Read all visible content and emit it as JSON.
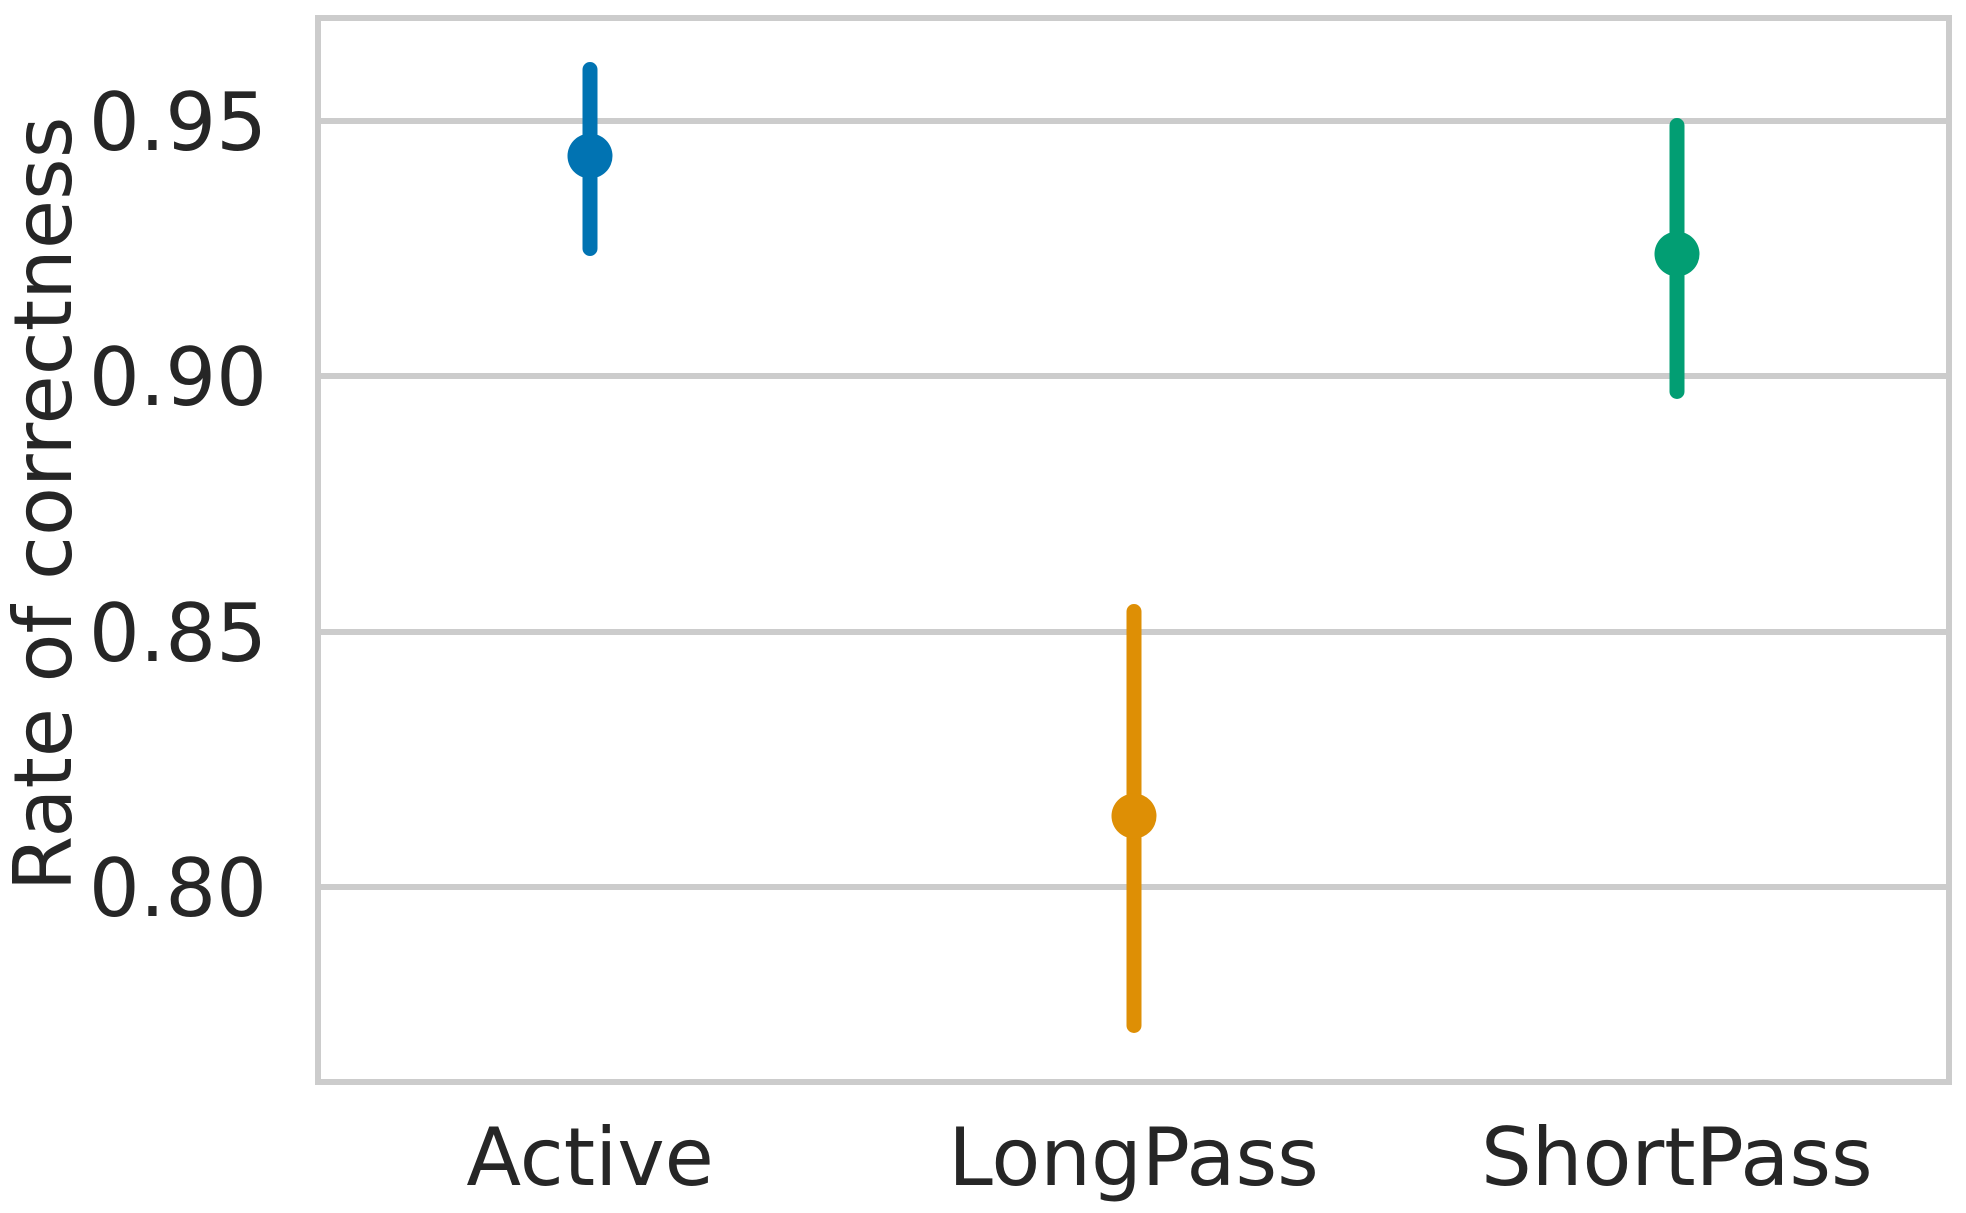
{
  "figure": {
    "background_color": "#ffffff",
    "grid_color": "#cccccc",
    "text_color": "#262626"
  },
  "chart_data": {
    "type": "point",
    "title": "",
    "xlabel": "",
    "ylabel": "Rate of correctness",
    "categories": [
      "Active",
      "LongPass",
      "ShortPass"
    ],
    "series": [
      {
        "name": "rate-of-correctness",
        "points": [
          {
            "category": "Active",
            "value": 0.943,
            "ci_low": 0.925,
            "ci_high": 0.96,
            "color": "#0173b2"
          },
          {
            "category": "LongPass",
            "value": 0.814,
            "ci_low": 0.773,
            "ci_high": 0.854,
            "color": "#de8f05"
          },
          {
            "category": "ShortPass",
            "value": 0.924,
            "ci_low": 0.897,
            "ci_high": 0.949,
            "color": "#029e73"
          }
        ]
      }
    ],
    "yticks": [
      {
        "value": 0.95,
        "label": "0.95"
      },
      {
        "value": 0.9,
        "label": "0.90"
      },
      {
        "value": 0.85,
        "label": "0.85"
      },
      {
        "value": 0.8,
        "label": "0.80"
      }
    ],
    "ylim": [
      0.762,
      0.97
    ],
    "grid": "horizontal",
    "legend": "none"
  }
}
